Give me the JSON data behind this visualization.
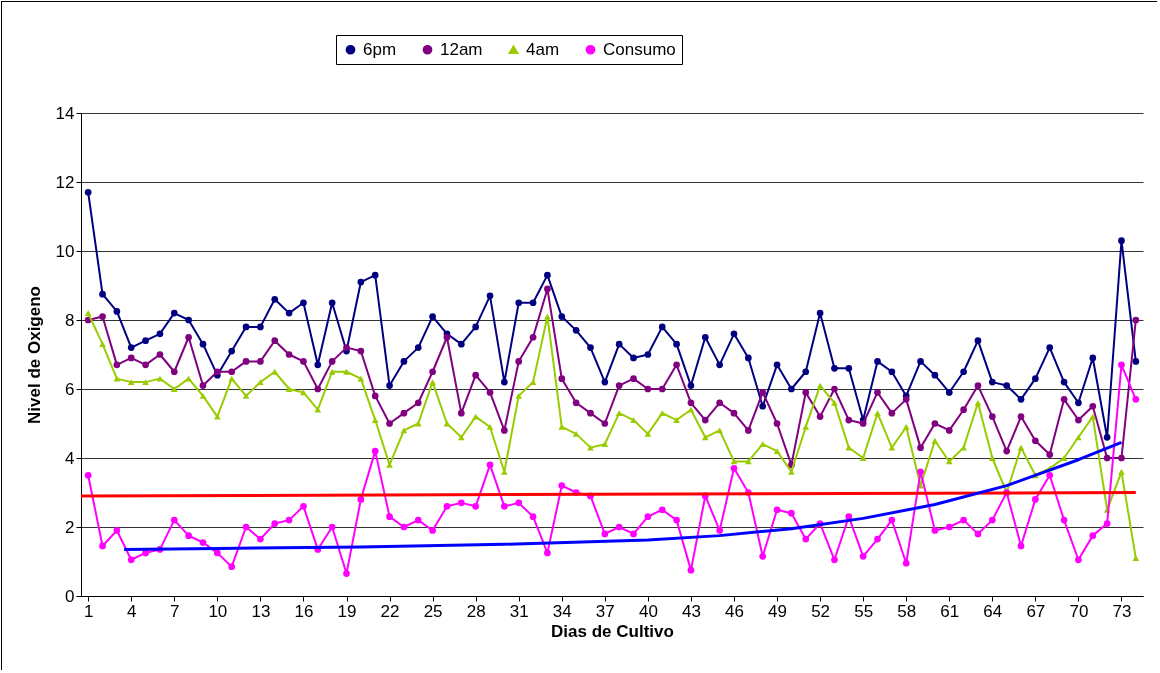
{
  "chart_data": {
    "type": "line",
    "xlabel": "Dias de Cultivo",
    "ylabel": "Nivel de Oxigeno",
    "x": [
      1,
      2,
      3,
      4,
      5,
      6,
      7,
      8,
      9,
      10,
      11,
      12,
      13,
      14,
      15,
      16,
      17,
      18,
      19,
      20,
      21,
      22,
      23,
      24,
      25,
      26,
      27,
      28,
      29,
      30,
      31,
      32,
      33,
      34,
      35,
      36,
      37,
      38,
      39,
      40,
      41,
      42,
      43,
      44,
      45,
      46,
      47,
      48,
      49,
      50,
      51,
      52,
      53,
      54,
      55,
      56,
      57,
      58,
      59,
      60,
      61,
      62,
      63,
      64,
      65,
      66,
      67,
      68,
      69,
      70,
      71,
      72,
      73,
      74
    ],
    "xlim": [
      0.5,
      74.5
    ],
    "xticks": [
      1,
      4,
      7,
      10,
      13,
      16,
      19,
      22,
      25,
      28,
      31,
      34,
      37,
      40,
      43,
      46,
      49,
      52,
      55,
      58,
      61,
      64,
      67,
      70,
      73
    ],
    "ylim": [
      0,
      14
    ],
    "yticks": [
      0,
      2,
      4,
      6,
      8,
      10,
      12,
      14
    ],
    "grid": "y",
    "legend": "top",
    "series": [
      {
        "name": "6pm",
        "color": "#000080",
        "marker": "circle",
        "values": [
          11.7,
          8.75,
          8.25,
          7.2,
          7.4,
          7.6,
          8.2,
          8.0,
          7.3,
          6.4,
          7.1,
          7.8,
          7.8,
          8.6,
          8.2,
          8.5,
          6.7,
          8.5,
          7.1,
          9.1,
          9.3,
          6.1,
          6.8,
          7.2,
          8.1,
          7.6,
          7.3,
          7.8,
          8.7,
          6.2,
          8.5,
          8.5,
          9.3,
          8.1,
          7.7,
          7.2,
          6.2,
          7.3,
          6.9,
          7.0,
          7.8,
          7.3,
          6.1,
          7.5,
          6.7,
          7.6,
          6.9,
          5.5,
          6.7,
          6.0,
          6.5,
          8.2,
          6.6,
          6.6,
          5.1,
          6.8,
          6.5,
          5.8,
          6.8,
          6.4,
          5.9,
          6.5,
          7.4,
          6.2,
          6.1,
          5.7,
          6.3,
          7.2,
          6.2,
          5.6,
          6.9,
          4.6,
          10.3,
          6.8
        ]
      },
      {
        "name": "12am",
        "color": "#800080",
        "marker": "circle",
        "values": [
          8.0,
          8.1,
          6.7,
          6.9,
          6.7,
          7.0,
          6.5,
          7.5,
          6.1,
          6.5,
          6.5,
          6.8,
          6.8,
          7.4,
          7.0,
          6.8,
          6.0,
          6.8,
          7.2,
          7.1,
          5.8,
          5.0,
          5.3,
          5.6,
          6.5,
          7.5,
          5.3,
          6.4,
          5.9,
          4.8,
          6.8,
          7.5,
          8.9,
          6.3,
          5.6,
          5.3,
          5.0,
          6.1,
          6.3,
          6.0,
          6.0,
          6.7,
          5.6,
          5.1,
          5.6,
          5.3,
          4.8,
          5.9,
          5.0,
          3.8,
          5.9,
          5.2,
          6.0,
          5.1,
          5.0,
          5.9,
          5.3,
          5.7,
          4.3,
          5.0,
          4.8,
          5.4,
          6.1,
          5.2,
          4.2,
          5.2,
          4.5,
          4.1,
          5.7,
          5.1,
          5.5,
          4.0,
          4.0,
          8.0
        ]
      },
      {
        "name": "4am",
        "color": "#99cc00",
        "marker": "triangle",
        "values": [
          8.2,
          7.3,
          6.3,
          6.2,
          6.2,
          6.3,
          6.0,
          6.3,
          5.8,
          5.2,
          6.3,
          5.8,
          6.2,
          6.5,
          6.0,
          5.9,
          5.4,
          6.5,
          6.5,
          6.3,
          5.1,
          3.8,
          4.8,
          5.0,
          6.2,
          5.0,
          4.6,
          5.2,
          4.9,
          3.6,
          5.8,
          6.2,
          8.1,
          4.9,
          4.7,
          4.3,
          4.4,
          5.3,
          5.1,
          4.7,
          5.3,
          5.1,
          5.4,
          4.6,
          4.8,
          3.9,
          3.9,
          4.4,
          4.2,
          3.6,
          4.9,
          6.1,
          5.6,
          4.3,
          4.0,
          5.3,
          4.3,
          4.9,
          3.2,
          4.5,
          3.9,
          4.3,
          5.6,
          4.0,
          3.0,
          4.3,
          3.5,
          3.7,
          4.0,
          4.6,
          5.2,
          2.5,
          3.6,
          1.1
        ]
      },
      {
        "name": "Consumo",
        "color": "#ff00ff",
        "marker": "circle",
        "values": [
          3.5,
          1.45,
          1.9,
          1.05,
          1.25,
          1.35,
          2.2,
          1.75,
          1.55,
          1.25,
          0.85,
          2.0,
          1.65,
          2.1,
          2.2,
          2.6,
          1.35,
          2.0,
          0.65,
          2.8,
          4.2,
          2.3,
          2.0,
          2.2,
          1.9,
          2.6,
          2.7,
          2.6,
          3.8,
          2.6,
          2.7,
          2.3,
          1.25,
          3.2,
          3.0,
          2.9,
          1.8,
          2.0,
          1.8,
          2.3,
          2.5,
          2.2,
          0.75,
          2.9,
          1.9,
          3.7,
          3.0,
          1.15,
          2.5,
          2.4,
          1.65,
          2.1,
          1.05,
          2.3,
          1.15,
          1.65,
          2.2,
          0.95,
          3.6,
          1.9,
          2.0,
          2.2,
          1.8,
          2.2,
          3.0,
          1.45,
          2.8,
          3.5,
          2.2,
          1.05,
          1.75,
          2.1,
          6.7,
          5.7
        ]
      },
      {
        "type": "line",
        "color": "#ff0000",
        "marker": "none",
        "x": [
          0.5,
          74
        ],
        "values": [
          2.9,
          3.0
        ]
      },
      {
        "type": "line",
        "color": "#0000ff",
        "marker": "none",
        "x": [
          3.5,
          10,
          20,
          30,
          40,
          45,
          50,
          55,
          60,
          65,
          70,
          73
        ],
        "values": [
          1.35,
          1.38,
          1.42,
          1.5,
          1.62,
          1.75,
          1.95,
          2.25,
          2.65,
          3.2,
          3.95,
          4.45
        ]
      }
    ]
  }
}
